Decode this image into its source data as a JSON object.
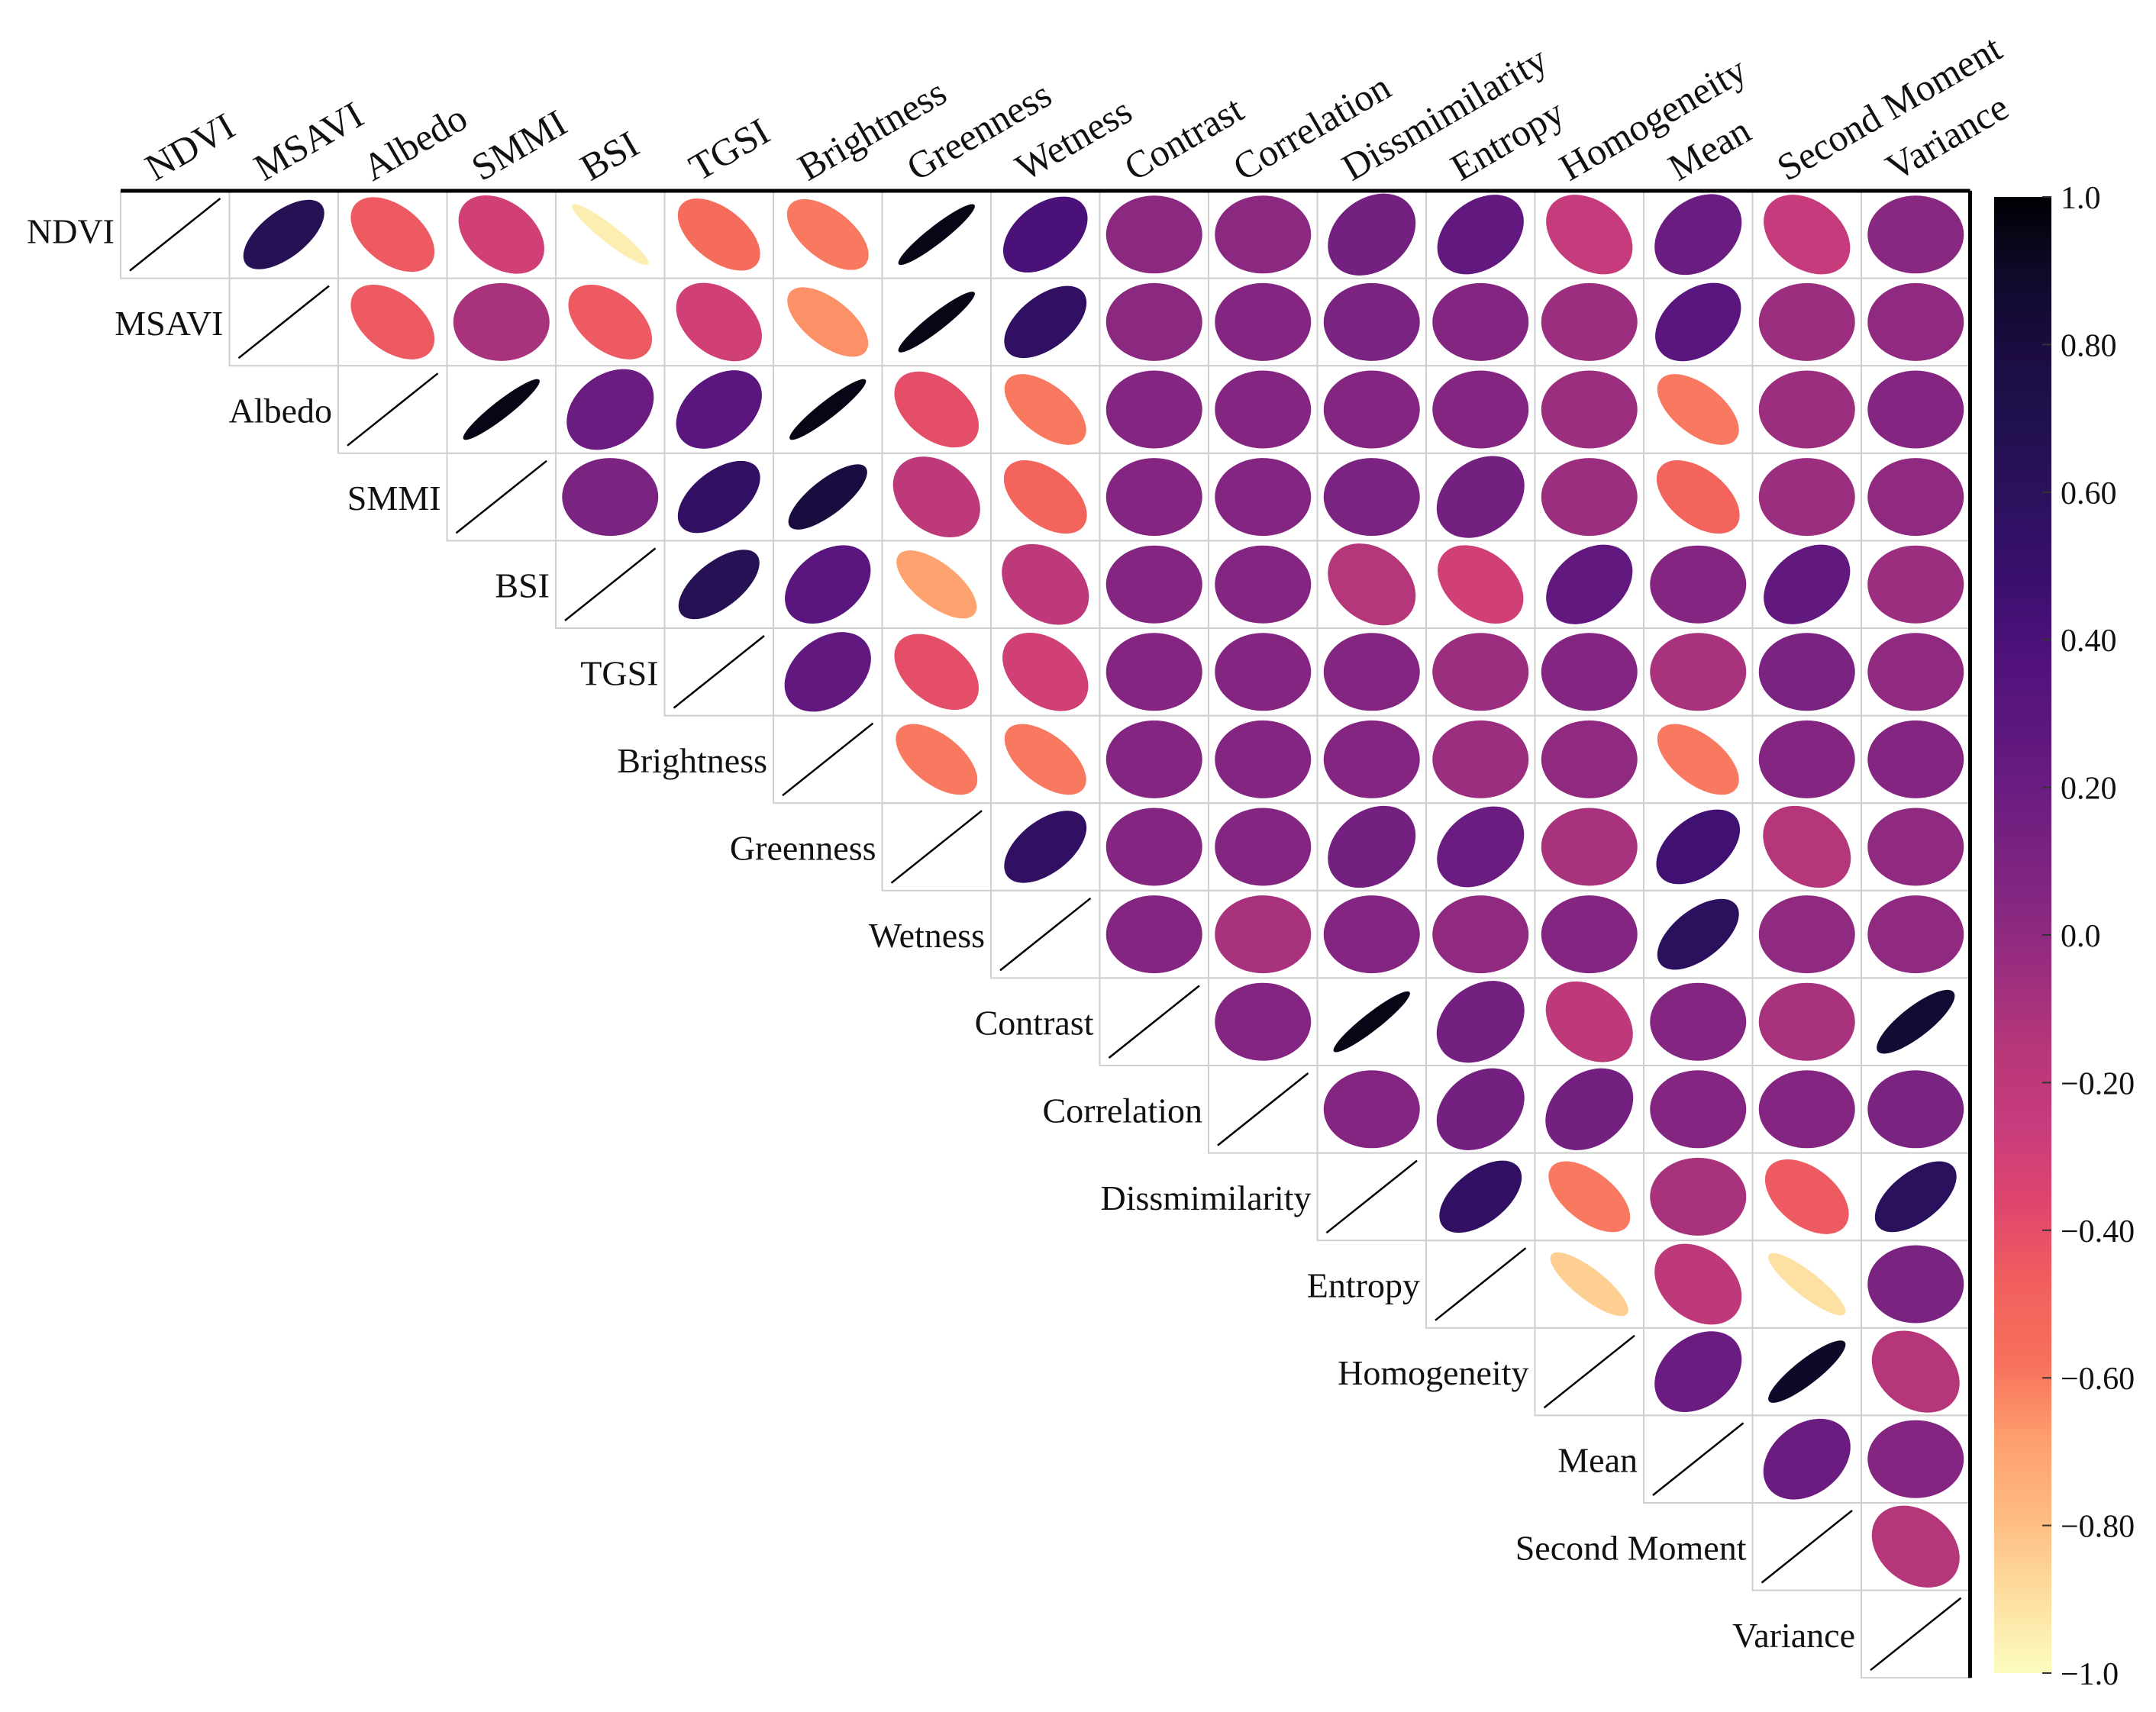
{
  "chart_data": {
    "type": "heatmap",
    "subtype": "correlation-ellipse-upper-triangle",
    "variables": [
      "NDVI",
      "MSAVI",
      "Albedo",
      "SMMI",
      "BSI",
      "TGSI",
      "Brightness",
      "Greenness",
      "Wetness",
      "Contrast",
      "Correlation",
      "Dissmimilarity",
      "Entropy",
      "Homogeneity",
      "Mean",
      "Second Moment",
      "Variance"
    ],
    "matrix": [
      [
        1,
        0.65,
        -0.45,
        -0.3,
        -0.95,
        -0.55,
        -0.6,
        0.95,
        0.4,
        0.02,
        0.02,
        0.15,
        0.25,
        -0.25,
        0.2,
        -0.25,
        0.03
      ],
      [
        0.65,
        1,
        -0.45,
        -0.1,
        -0.45,
        -0.3,
        -0.65,
        0.95,
        0.55,
        0.02,
        0.05,
        0.1,
        0.05,
        -0.05,
        0.3,
        -0.05,
        0.0
      ],
      [
        -0.45,
        -0.45,
        1,
        0.95,
        0.2,
        0.3,
        0.95,
        -0.4,
        -0.6,
        0.05,
        0.05,
        0.05,
        0.05,
        -0.05,
        -0.6,
        -0.05,
        0.05
      ],
      [
        -0.3,
        -0.1,
        0.95,
        1,
        0.1,
        0.55,
        0.8,
        -0.2,
        -0.5,
        0.05,
        0.05,
        0.1,
        0.15,
        -0.05,
        -0.5,
        -0.05,
        0.0
      ],
      [
        -0.95,
        -0.45,
        0.2,
        0.1,
        1,
        0.65,
        0.3,
        -0.7,
        -0.2,
        0.05,
        0.05,
        -0.15,
        -0.3,
        0.25,
        0.05,
        0.25,
        -0.05
      ],
      [
        -0.55,
        -0.3,
        0.3,
        0.55,
        0.65,
        1,
        0.25,
        -0.4,
        -0.3,
        0.05,
        0.05,
        0.05,
        -0.05,
        0.05,
        -0.1,
        0.1,
        0.0
      ],
      [
        -0.6,
        -0.65,
        0.95,
        0.8,
        0.3,
        0.25,
        1,
        -0.6,
        -0.6,
        0.05,
        0.05,
        0.05,
        -0.05,
        0.0,
        -0.6,
        0.05,
        0.05
      ],
      [
        0.95,
        0.95,
        -0.4,
        -0.2,
        -0.7,
        -0.4,
        -0.6,
        1,
        0.55,
        0.05,
        0.05,
        0.15,
        0.2,
        -0.1,
        0.45,
        -0.15,
        0.0
      ],
      [
        0.4,
        0.55,
        -0.6,
        -0.5,
        -0.2,
        -0.3,
        -0.6,
        0.55,
        1,
        0.05,
        -0.1,
        0.05,
        0.0,
        0.05,
        0.6,
        0.0,
        0.0
      ],
      [
        0.02,
        0.02,
        0.05,
        0.05,
        0.05,
        0.05,
        0.05,
        0.05,
        0.05,
        1,
        0.05,
        0.95,
        0.15,
        -0.2,
        0.05,
        -0.1,
        0.85
      ],
      [
        0.02,
        0.05,
        0.05,
        0.05,
        0.05,
        0.05,
        0.05,
        0.05,
        -0.1,
        0.05,
        1,
        0.05,
        0.15,
        0.15,
        0.05,
        0.05,
        0.1
      ],
      [
        0.15,
        0.1,
        0.05,
        0.1,
        -0.15,
        0.05,
        0.05,
        0.15,
        0.05,
        0.95,
        0.05,
        1,
        0.55,
        -0.6,
        -0.1,
        -0.45,
        0.6
      ],
      [
        0.25,
        0.05,
        0.05,
        0.15,
        -0.3,
        -0.05,
        -0.05,
        0.2,
        0.0,
        0.15,
        0.15,
        0.55,
        1,
        -0.85,
        -0.2,
        -0.9,
        0.1
      ],
      [
        -0.25,
        -0.05,
        -0.05,
        -0.05,
        0.25,
        0.05,
        0.0,
        -0.1,
        0.05,
        -0.2,
        0.15,
        -0.6,
        -0.85,
        1,
        0.2,
        0.9,
        -0.15
      ],
      [
        0.2,
        0.3,
        -0.6,
        -0.5,
        0.05,
        -0.1,
        -0.6,
        0.45,
        0.6,
        0.05,
        0.05,
        -0.1,
        -0.2,
        0.2,
        1,
        0.2,
        0.05
      ],
      [
        -0.25,
        -0.05,
        -0.05,
        -0.05,
        0.25,
        0.1,
        0.05,
        -0.15,
        0.0,
        -0.1,
        0.05,
        -0.45,
        -0.9,
        0.9,
        0.2,
        1,
        -0.15
      ],
      [
        0.03,
        0.0,
        0.05,
        0.0,
        -0.05,
        0.0,
        0.05,
        0.0,
        0.0,
        0.85,
        0.1,
        0.6,
        0.1,
        -0.15,
        0.05,
        -0.15,
        1
      ]
    ],
    "colorbar": {
      "min": -1.0,
      "max": 1.0,
      "ticks": [
        "1.0",
        "0.80",
        "0.60",
        "0.40",
        "0.20",
        "0.0",
        "−0.20",
        "−0.40",
        "−0.60",
        "−0.80",
        "−1.0"
      ],
      "tick_values": [
        1.0,
        0.8,
        0.6,
        0.4,
        0.2,
        0.0,
        -0.2,
        -0.4,
        -0.6,
        -0.8,
        -1.0
      ],
      "colors": [
        "#fcfdbf",
        "#fddea0",
        "#febb81",
        "#fe9f6d",
        "#f7705c",
        "#f1605d",
        "#e0466d",
        "#c83c7c",
        "#b73779",
        "#9c2e7f",
        "#832681",
        "#721f81",
        "#5f187f",
        "#51127c",
        "#3b0f70",
        "#2d1160",
        "#221150",
        "#1b0c41",
        "#0f0a2a",
        "#000004"
      ]
    }
  }
}
